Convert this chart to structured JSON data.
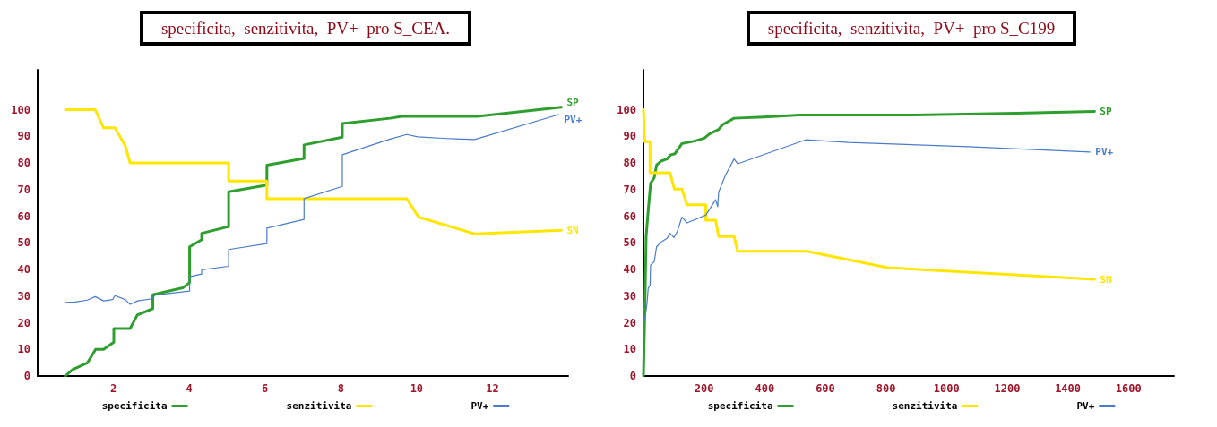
{
  "chart_data": [
    {
      "type": "line",
      "title": "specificita,  senzitivita,  PV+  pro S_CEA.",
      "xlim": [
        0,
        14
      ],
      "xticks": [
        2,
        4,
        6,
        8,
        10,
        12
      ],
      "ylim": [
        0,
        115
      ],
      "yticks": [
        0,
        10,
        20,
        30,
        40,
        50,
        60,
        70,
        80,
        90,
        100
      ],
      "grid": false,
      "legend": "bottom",
      "marker": "none",
      "line_style": "solid",
      "series": [
        {
          "name": "specificita",
          "color": "#2e9e2e",
          "x": [
            0.73,
            0.92,
            1.31,
            1.53,
            1.74,
            2.01,
            2.01,
            2.44,
            2.63,
            3.04,
            3.04,
            3.83,
            4.01,
            4.01,
            4.33,
            4.33,
            5.04,
            5.04,
            6.05,
            6.05,
            7.03,
            7.03,
            8.04,
            8.04,
            9.3,
            9.61,
            11.6,
            13.82
          ],
          "values": [
            0,
            2.4,
            4.9,
            10,
            10,
            12.7,
            17.8,
            17.8,
            22.9,
            25.3,
            30.5,
            33.1,
            35.1,
            48.5,
            51.2,
            53.6,
            56.1,
            69.2,
            71.7,
            79.2,
            81.7,
            86.8,
            89.7,
            94.8,
            96.8,
            97.5,
            97.5,
            101
          ]
        },
        {
          "name": "senzitivita",
          "color": "#ffe600",
          "x": [
            0.73,
            1.52,
            1.74,
            2.04,
            2.31,
            2.44,
            5.04,
            5.04,
            6.05,
            6.05,
            9.74,
            10.05,
            11.53,
            13.82
          ],
          "values": [
            100,
            100,
            93.2,
            93.2,
            86.5,
            80,
            80,
            73.2,
            73.2,
            66.6,
            66.6,
            59.7,
            53.4,
            54.7
          ]
        },
        {
          "name": "PV+",
          "color": "#4a7cc8",
          "x": [
            0.73,
            0.99,
            1.31,
            1.52,
            1.74,
            1.98,
            2.04,
            2.31,
            2.44,
            2.64,
            3.02,
            3.1,
            4.01,
            4.01,
            4.33,
            4.33,
            5.04,
            5.04,
            6.05,
            6.05,
            7.03,
            7.03,
            8.04,
            8.04,
            9.3,
            9.74,
            10.03,
            10.8,
            11.53,
            13.75
          ],
          "values": [
            27.6,
            27.8,
            28.5,
            29.8,
            28.2,
            28.7,
            30.2,
            28.7,
            26.9,
            28.2,
            29,
            30.4,
            31.9,
            37.3,
            38.3,
            39.9,
            41.2,
            47.5,
            49.7,
            55.5,
            58.8,
            66.6,
            71.2,
            83.1,
            89,
            90.7,
            89.8,
            89.2,
            88.8,
            98.2
          ]
        }
      ],
      "annotations": [
        "SP",
        "SN",
        "PV+"
      ]
    },
    {
      "type": "line",
      "title": "specificita,  senzitivita,  PV+  pro S_C199",
      "xlim": [
        0,
        1750
      ],
      "xticks": [
        200,
        400,
        600,
        800,
        1000,
        1200,
        1400,
        1600
      ],
      "ylim": [
        0,
        115
      ],
      "yticks": [
        0,
        10,
        20,
        30,
        40,
        50,
        60,
        70,
        80,
        90,
        100
      ],
      "grid": false,
      "legend": "bottom",
      "marker": "none",
      "line_style": "solid",
      "series": [
        {
          "name": "specificita",
          "color": "#2e9e2e",
          "x": [
            0,
            4,
            8.8,
            15.7,
            23.6,
            35.4,
            43.3,
            58,
            77.7,
            90.4,
            104,
            127,
            171,
            200.6,
            218,
            248,
            260,
            299,
            397,
            515,
            677,
            894,
            1230,
            1488
          ],
          "values": [
            0,
            22.2,
            52.4,
            62.2,
            72.4,
            74.4,
            79.2,
            80.7,
            81.5,
            83.1,
            83.5,
            87.3,
            88.3,
            89.3,
            90.9,
            92.6,
            94.3,
            96.8,
            97.3,
            98,
            98,
            98,
            98.7,
            99.4
          ]
        },
        {
          "name": "senzitivita",
          "color": "#ffe600",
          "x": [
            0,
            4,
            21.6,
            21.6,
            87.6,
            102,
            127,
            143.6,
            205.6,
            205.6,
            238,
            248,
            299,
            310.7,
            540,
            805,
            1488
          ],
          "values": [
            100,
            88,
            88,
            76.3,
            76.3,
            70.2,
            70.2,
            64.3,
            64.3,
            58.5,
            58.5,
            52.4,
            52.4,
            46.8,
            46.8,
            40.7,
            36.3
          ]
        },
        {
          "name": "PV+",
          "color": "#4a7cc8",
          "x": [
            0,
            5.9,
            11.8,
            15.7,
            21.6,
            23.6,
            35.4,
            43.3,
            58,
            77.7,
            87.6,
            100.4,
            112,
            127,
            143.6,
            205.6,
            238,
            245,
            248,
            270,
            299,
            310.7,
            535,
            677,
            1072,
            1473
          ],
          "values": [
            19.8,
            22.2,
            27.3,
            33,
            34,
            41.7,
            42.9,
            48.5,
            50.3,
            51.7,
            53.6,
            52,
            54.4,
            59.7,
            57.5,
            60.4,
            66.2,
            63.6,
            69,
            75.3,
            81.5,
            79.7,
            88.7,
            87.7,
            86.1,
            84.1
          ]
        }
      ],
      "annotations": [
        "SP",
        "SN",
        "PV+"
      ]
    }
  ]
}
